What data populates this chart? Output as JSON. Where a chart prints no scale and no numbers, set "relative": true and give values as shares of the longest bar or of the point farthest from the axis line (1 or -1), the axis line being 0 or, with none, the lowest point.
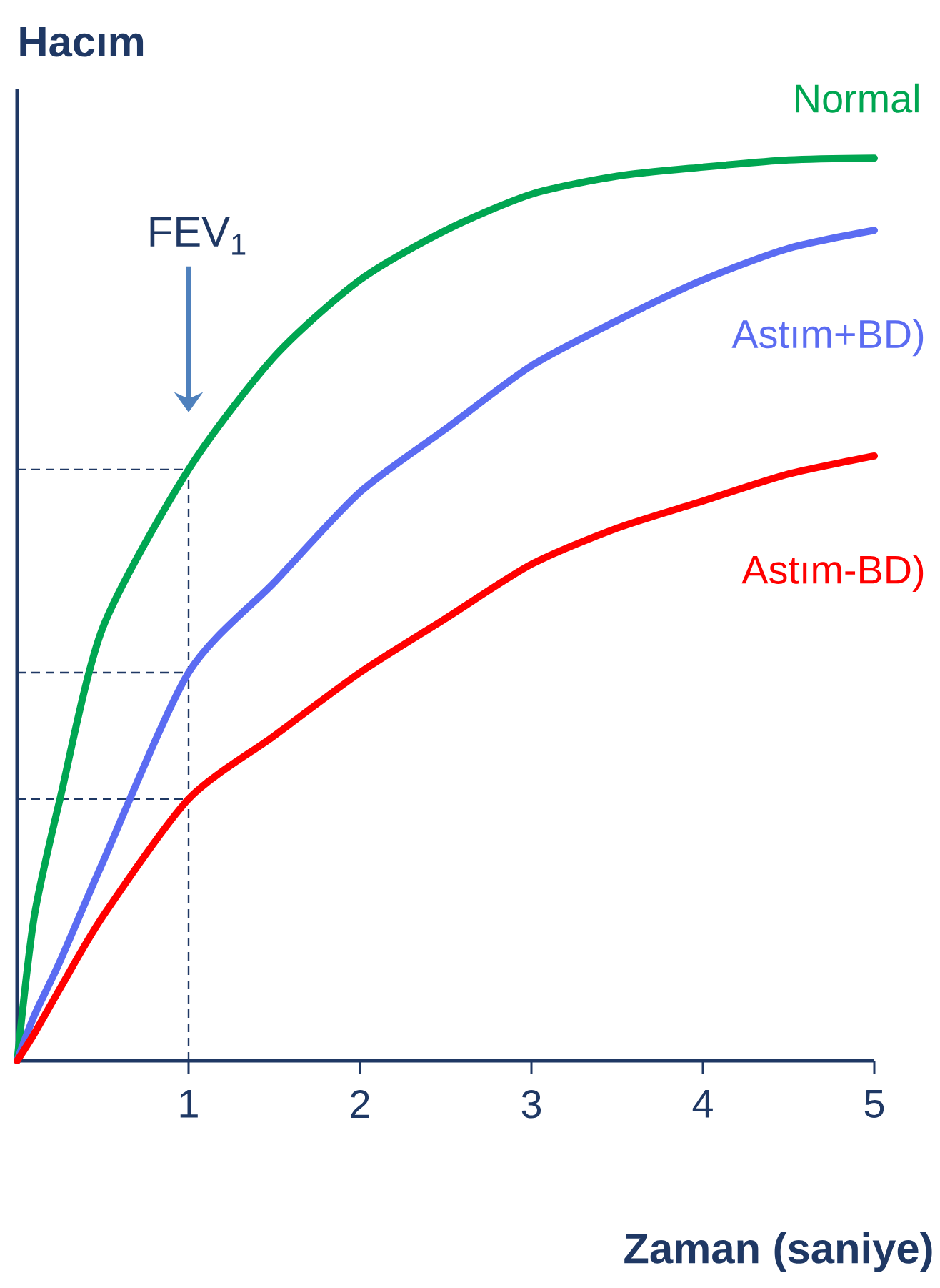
{
  "chart_data": {
    "type": "line",
    "xlabel": "Zaman (saniye)",
    "ylabel": "Hacım",
    "relative": true,
    "legend": false,
    "marker": "none",
    "line_style": "solid",
    "xlim": [
      0,
      5
    ],
    "xticks": [
      1,
      2,
      3,
      4,
      5
    ],
    "x": [
      0,
      0.1,
      0.25,
      0.5,
      1,
      1.5,
      2,
      2.5,
      3,
      3.5,
      4,
      4.5,
      5
    ],
    "series": [
      {
        "name": "Normal",
        "color": "#00a651",
        "values": [
          0,
          0.16,
          0.29,
          0.48,
          0.655,
          0.78,
          0.865,
          0.92,
          0.96,
          0.98,
          0.99,
          0.998,
          1
        ]
      },
      {
        "name": "Astım+BD)",
        "color": "#5b6cf2",
        "values": [
          0,
          0.05,
          0.11,
          0.22,
          0.43,
          0.53,
          0.63,
          0.7,
          0.77,
          0.82,
          0.865,
          0.9,
          0.92
        ]
      },
      {
        "name": "Astım-BD)",
        "color": "#ff0000",
        "values": [
          0,
          0.03,
          0.08,
          0.16,
          0.29,
          0.36,
          0.43,
          0.49,
          0.55,
          0.59,
          0.62,
          0.65,
          0.67
        ]
      }
    ],
    "ref_lines": [
      {
        "axis": "x",
        "value": 1,
        "color": "#1f3864",
        "line_style": "dashed"
      },
      {
        "axis": "y",
        "value": 0.655,
        "color": "#1f3864",
        "line_style": "dashed"
      },
      {
        "axis": "y",
        "value": 0.43,
        "color": "#1f3864",
        "line_style": "dashed"
      },
      {
        "axis": "y",
        "value": 0.29,
        "color": "#1f3864",
        "line_style": "dashed"
      }
    ],
    "annotations": [
      "FEV$_{1}$"
    ]
  }
}
